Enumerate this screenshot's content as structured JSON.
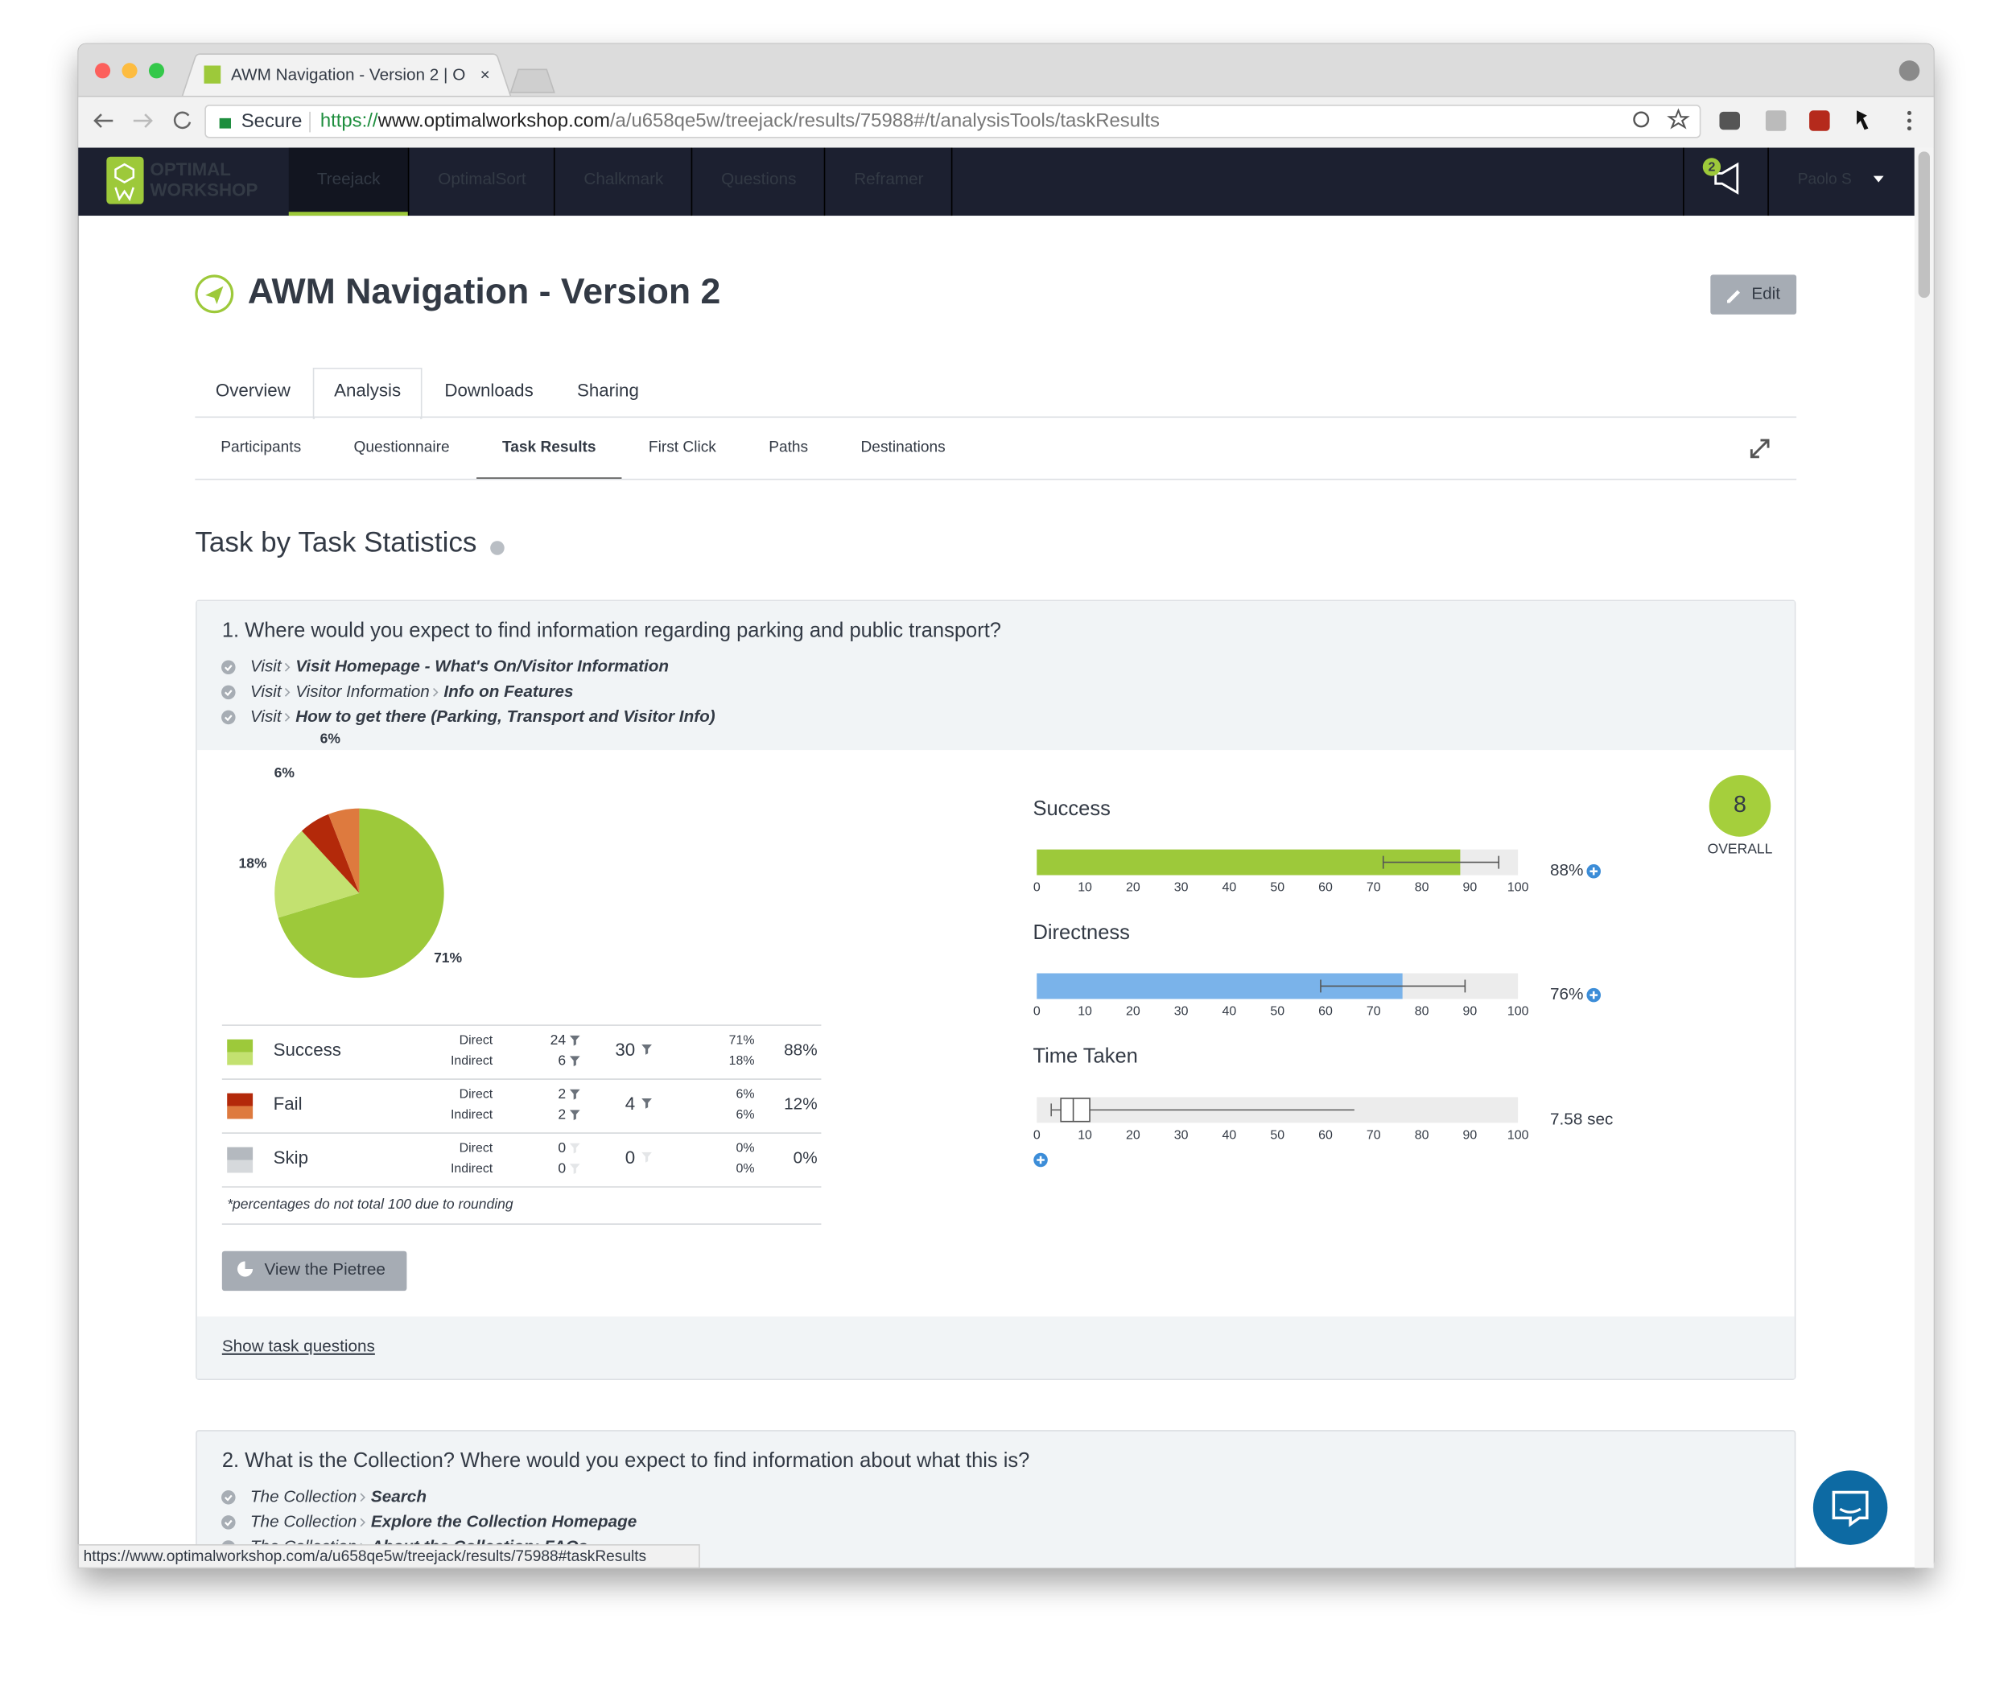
{
  "browser": {
    "tab_title": "AWM Navigation - Version 2 | O",
    "secure_label": "Secure",
    "url_scheme": "https://",
    "url_host": "www.optimalworkshop.com",
    "url_path": "/a/u658qe5w/treejack/results/75988#/t/analysisTools/taskResults",
    "status_url": "https://www.optimalworkshop.com/a/u658qe5w/treejack/results/75988#taskResults"
  },
  "nav": {
    "logo_lines": [
      "OPTIMAL",
      "WORKSHOP"
    ],
    "items": [
      "Treejack",
      "OptimalSort",
      "Chalkmark",
      "Questions",
      "Reframer"
    ],
    "active_index": 0,
    "notification_count": 2,
    "user": "Paolo S"
  },
  "header": {
    "title": "AWM Navigation - Version 2",
    "edit_button": "Edit"
  },
  "tabs": {
    "items": [
      "Overview",
      "Analysis",
      "Downloads",
      "Sharing"
    ],
    "active_index": 1
  },
  "subtabs": {
    "items": [
      "Participants",
      "Questionnaire",
      "Task Results",
      "First Click",
      "Paths",
      "Destinations"
    ],
    "active_index": 2
  },
  "section_title": "Task by Task Statistics",
  "tasks": [
    {
      "question": "1. Where would you expect to find information regarding parking and public transport?",
      "paths": [
        {
          "crumbs": [
            "Visit"
          ],
          "target": "Visit Homepage - What's On/Visitor Information"
        },
        {
          "crumbs": [
            "Visit",
            "Visitor Information"
          ],
          "target": "Info on Features"
        },
        {
          "crumbs": [
            "Visit"
          ],
          "target": "How to get there (Parking, Transport and Visitor Info)"
        }
      ],
      "pie": {
        "type": "pie",
        "values": [
          71,
          18,
          6,
          6
        ],
        "value_labels": [
          "71%",
          "18%",
          "6%",
          "6%"
        ],
        "colors": [
          "#9dc93a",
          "#c3e170",
          "#b3290a",
          "#de7a3e"
        ]
      },
      "table": {
        "rows": [
          {
            "name": "Success",
            "colors": [
              "#9dc93a",
              "#c3e170"
            ],
            "sub_labels": [
              "Direct",
              "Indirect"
            ],
            "counts": [
              24,
              6
            ],
            "total": 30,
            "percents": [
              "71%",
              "18%"
            ],
            "total_percent": "88%"
          },
          {
            "name": "Fail",
            "colors": [
              "#b3290a",
              "#de7a3e"
            ],
            "sub_labels": [
              "Direct",
              "Indirect"
            ],
            "counts": [
              2,
              2
            ],
            "total": 4,
            "percents": [
              "6%",
              "6%"
            ],
            "total_percent": "12%"
          },
          {
            "name": "Skip",
            "colors": [
              "#b4b9bf",
              "#d6d9dc"
            ],
            "sub_labels": [
              "Direct",
              "Indirect"
            ],
            "counts": [
              0,
              0
            ],
            "total": 0,
            "percents": [
              "0%",
              "0%"
            ],
            "total_percent": "0%"
          }
        ],
        "footnote": "*percentages do not total 100 due to rounding"
      },
      "pietree_button": "View the Pietree",
      "show_questions": "Show task questions",
      "overall": {
        "value": 8,
        "label": "OVERALL",
        "color": "#a5cf3c"
      },
      "metrics": [
        {
          "type": "bar",
          "title": "Success",
          "value": 88,
          "ci": [
            72,
            96
          ],
          "value_label": "88%",
          "color": "#9dc93a",
          "xlim": [
            0,
            100
          ],
          "xticks": [
            0,
            10,
            20,
            30,
            40,
            50,
            60,
            70,
            80,
            90,
            100
          ]
        },
        {
          "type": "bar",
          "title": "Directness",
          "value": 76,
          "ci": [
            59,
            89
          ],
          "value_label": "76%",
          "color": "#7ab3ea",
          "xlim": [
            0,
            100
          ],
          "xticks": [
            0,
            10,
            20,
            30,
            40,
            50,
            60,
            70,
            80,
            90,
            100
          ]
        },
        {
          "type": "box",
          "title": "Time Taken",
          "whiskers": [
            3,
            66
          ],
          "box": [
            5,
            11
          ],
          "median": 7.58,
          "value_label": "7.58 sec",
          "xlim": [
            0,
            100
          ],
          "xticks": [
            0,
            10,
            20,
            30,
            40,
            50,
            60,
            70,
            80,
            90,
            100
          ]
        }
      ]
    },
    {
      "question": "2. What is the Collection? Where would you expect to find information about what this is?",
      "paths": [
        {
          "crumbs": [
            "The Collection"
          ],
          "target": "Search"
        },
        {
          "crumbs": [
            "The Collection"
          ],
          "target": "Explore the Collection Homepage"
        },
        {
          "crumbs": [
            "The Collection"
          ],
          "target": "About the Collection: FAQs"
        }
      ]
    }
  ]
}
